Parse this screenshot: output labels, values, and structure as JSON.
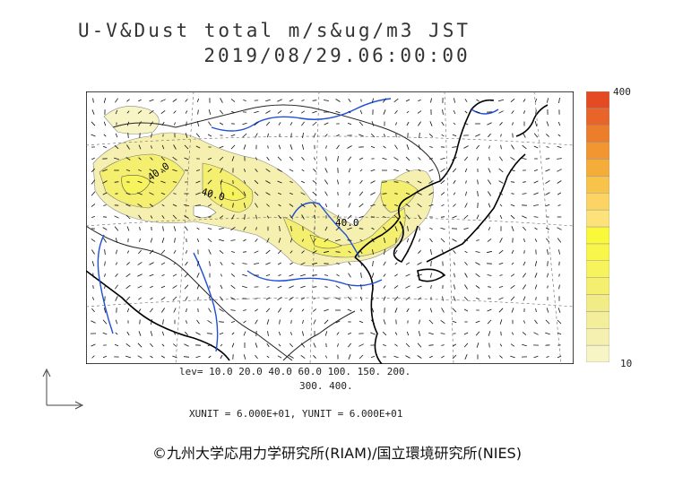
{
  "title": {
    "line1": "U-V&Dust total m/s&ug/m3 JST",
    "line2": "2019/08/29.06:00:00"
  },
  "map": {
    "contour_labels": [
      "40.0",
      "40.0",
      "40.0"
    ]
  },
  "legend": {
    "max_label": "400",
    "min_label": "10",
    "colors": [
      "#f7f4c6",
      "#f5f0b0",
      "#f3ee9a",
      "#f2ec86",
      "#f4ef6e",
      "#f6f35c",
      "#f8f64a",
      "#faf83a",
      "#fde27a",
      "#fbd463",
      "#f8c349",
      "#f5ad3a",
      "#f19630",
      "#ec7d2b",
      "#e86429",
      "#e44a24"
    ]
  },
  "levels": {
    "line1": "lev= 10.0 20.0 40.0 60.0 100. 150. 200.",
    "line2": "300. 400."
  },
  "units": "XUNIT = 6.000E+01, YUNIT = 6.000E+01",
  "credit": "©九州大学応用力学研究所(RIAM)/国立環境研究所(NIES)"
}
